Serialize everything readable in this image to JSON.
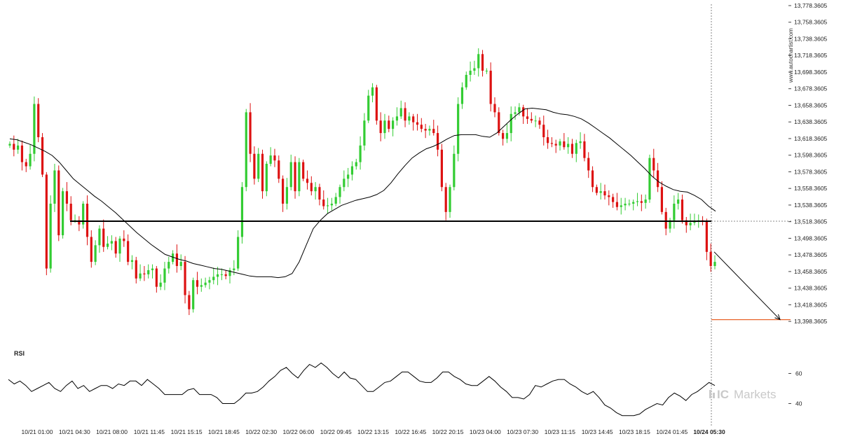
{
  "watermark": {
    "site": "www.autochartist.com",
    "brand": "Markets",
    "brand_prefix": "IC",
    "brand_color": "#c9c9c9"
  },
  "colors": {
    "up_candle": "#33cc33",
    "down_candle": "#dd1111",
    "moving_average": "#000000",
    "level_line": "#000000",
    "target_line": "#e8632a",
    "rsi_line": "#000000",
    "forecast_arrow": "#000000",
    "grid_dashed": "#666666"
  },
  "chart_data": [
    {
      "type": "candlestick",
      "title": "",
      "ylim": [
        13388.3605,
        13778.3605
      ],
      "y_ticks": [
        "13,778.3605",
        "13,758.3605",
        "13,738.3605",
        "13,718.3605",
        "13,698.3605",
        "13,678.3605",
        "13,658.3605",
        "13,638.3605",
        "13,618.3605",
        "13,598.3605",
        "13,578.3605",
        "13,558.3605",
        "13,538.3605",
        "13,518.3605",
        "13,498.3605",
        "13,478.3605",
        "13,458.3605",
        "13,438.3605",
        "13,418.3605",
        "13,398.3605"
      ],
      "x_ticks": [
        "10/21 01:00",
        "10/21 04:30",
        "10/21 08:00",
        "10/21 11:45",
        "10/21 15:15",
        "10/21 18:45",
        "10/22 02:30",
        "10/22 06:00",
        "10/22 09:45",
        "10/22 13:15",
        "10/22 16:45",
        "10/22 20:15",
        "10/23 04:00",
        "10/23 07:30",
        "10/23 11:15",
        "10/23 14:45",
        "10/23 18:15",
        "10/24 01:45",
        "10/24 05:30"
      ],
      "current_time_label": "10/24 05:30",
      "key_level": 13518.9,
      "target_level": 13400.5,
      "forecast": {
        "from": 13482,
        "to": 13400.5
      },
      "close_series": [
        13612,
        13605,
        13610,
        13590,
        13585,
        13600,
        13660,
        13620,
        13575,
        13462,
        13540,
        13580,
        13502,
        13555,
        13540,
        13520,
        13520,
        13515,
        13540,
        13500,
        13470,
        13490,
        13510,
        13488,
        13492,
        13495,
        13480,
        13498,
        13495,
        13470,
        13472,
        13450,
        13456,
        13455,
        13460,
        13462,
        13440,
        13445,
        13462,
        13470,
        13480,
        13465,
        13470,
        13430,
        13413,
        13448,
        13440,
        13442,
        13445,
        13448,
        13452,
        13455,
        13455,
        13453,
        13460,
        13462,
        13500,
        13560,
        13650,
        13600,
        13570,
        13600,
        13555,
        13588,
        13598,
        13592,
        13570,
        13540,
        13560,
        13590,
        13555,
        13590,
        13570,
        13565,
        13555,
        13560,
        13545,
        13537,
        13538,
        13540,
        13548,
        13560,
        13570,
        13575,
        13585,
        13590,
        13610,
        13640,
        13670,
        13680,
        13640,
        13625,
        13640,
        13630,
        13640,
        13645,
        13655,
        13640,
        13645,
        13638,
        13635,
        13630,
        13628,
        13630,
        13625,
        13605,
        13560,
        13530,
        13560,
        13600,
        13660,
        13680,
        13695,
        13700,
        13703,
        13720,
        13700,
        13700,
        13660,
        13650,
        13625,
        13618,
        13625,
        13648,
        13650,
        13656,
        13645,
        13642,
        13640,
        13640,
        13635,
        13620,
        13613,
        13612,
        13610,
        13615,
        13608,
        13612,
        13600,
        13613,
        13615,
        13595,
        13580,
        13560,
        13553,
        13555,
        13550,
        13548,
        13542,
        13536,
        13538,
        13540,
        13540,
        13542,
        13543,
        13541,
        13545,
        13595,
        13580,
        13560,
        13530,
        13510,
        13520,
        13540,
        13545,
        13520,
        13514,
        13517,
        13519,
        13520,
        13519,
        13482,
        13465,
        13470
      ],
      "ma_series": [
        13618,
        13617,
        13614,
        13611,
        13607,
        13603,
        13598,
        13590,
        13580,
        13570,
        13563,
        13556,
        13549,
        13543,
        13536,
        13529,
        13521,
        13513,
        13505,
        13498,
        13491,
        13485,
        13479,
        13476,
        13473,
        13471,
        13468,
        13466,
        13464,
        13462,
        13461,
        13459,
        13457,
        13455,
        13453,
        13452,
        13452,
        13452,
        13451,
        13452,
        13456,
        13470,
        13490,
        13510,
        13520,
        13528,
        13533,
        13538,
        13541,
        13544,
        13546,
        13548,
        13551,
        13556,
        13565,
        13576,
        13586,
        13595,
        13601,
        13606,
        13609,
        13613,
        13618,
        13622,
        13623,
        13623,
        13623,
        13621,
        13620,
        13625,
        13633,
        13641,
        13648,
        13654,
        13655,
        13654,
        13653,
        13650,
        13648,
        13647,
        13645,
        13642,
        13637,
        13631,
        13625,
        13619,
        13612,
        13605,
        13598,
        13590,
        13582,
        13573,
        13566,
        13561,
        13557,
        13555,
        13554,
        13550,
        13545,
        13537,
        13531
      ],
      "rsi": {
        "label": "RSI",
        "ylim": [
          30,
          70
        ],
        "y_ticks": [
          "60",
          "40"
        ],
        "values": [
          56,
          53,
          55,
          52,
          48,
          50,
          52,
          54,
          50,
          48,
          52,
          55,
          50,
          52,
          48,
          50,
          52,
          52,
          50,
          53,
          52,
          55,
          55,
          52,
          56,
          53,
          50,
          46,
          46,
          46,
          46,
          49,
          50,
          46,
          46,
          46,
          44,
          40,
          40,
          40,
          43,
          47,
          47,
          48,
          51,
          55,
          58,
          62,
          64,
          60,
          57,
          62,
          66,
          64,
          67,
          64,
          60,
          57,
          61,
          57,
          56,
          52,
          48,
          48,
          51,
          54,
          55,
          58,
          61,
          61,
          58,
          55,
          54,
          54,
          57,
          61,
          61,
          58,
          56,
          53,
          52,
          52,
          55,
          58,
          55,
          51,
          48,
          44,
          44,
          43,
          46,
          52,
          51,
          53,
          55,
          56,
          56,
          53,
          51,
          48,
          46,
          48,
          44,
          39,
          37,
          34,
          32,
          32,
          32,
          33,
          36,
          38,
          40,
          39,
          44,
          47,
          45,
          42,
          46,
          48,
          51,
          54,
          52
        ]
      }
    }
  ]
}
